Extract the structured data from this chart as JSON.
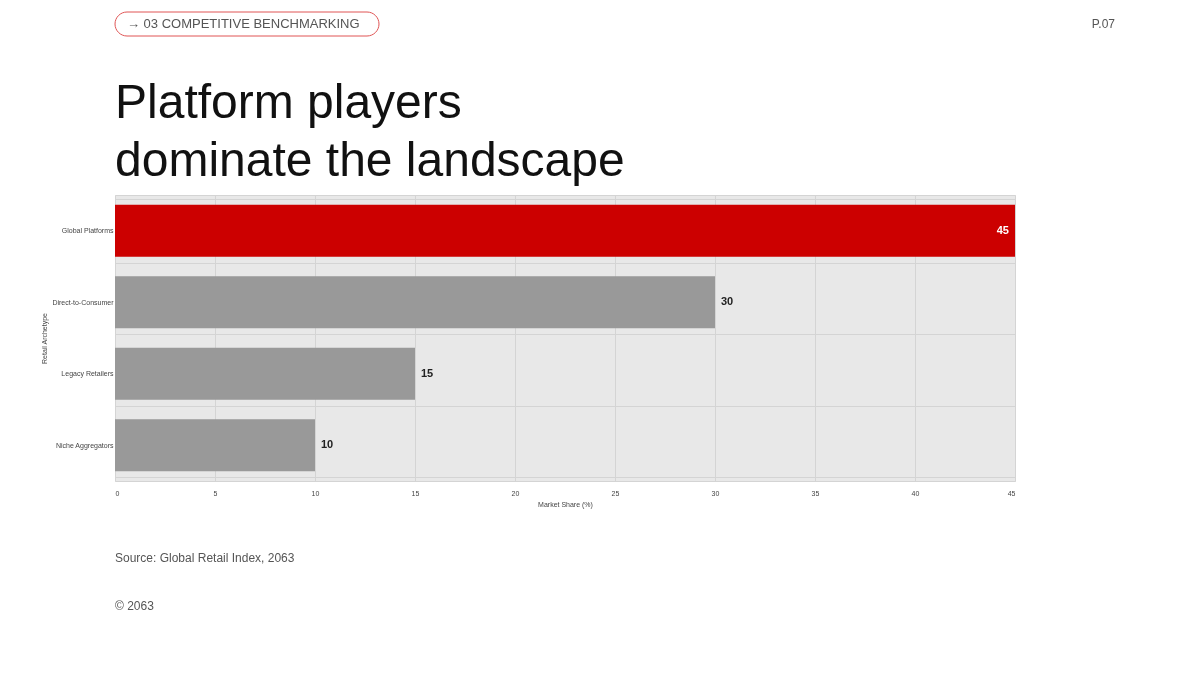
{
  "chart_data": {
    "type": "bar",
    "orientation": "horizontal",
    "title": "Platform players\ndominate the landscape",
    "xlabel": "Market Share (%)",
    "ylabel": "Retail Archetype",
    "categories": [
      "Global Platforms",
      "Direct-to-Consumer",
      "Legacy Retailers",
      "Niche Aggregators"
    ],
    "values": [
      45,
      30,
      15,
      10
    ],
    "colors": [
      "#cc0000",
      "#999999",
      "#999999",
      "#999999"
    ],
    "xlim": [
      0,
      45
    ],
    "xticks": [
      0,
      5,
      10,
      15,
      20,
      25,
      30,
      35,
      40,
      45
    ],
    "grid": true,
    "data_labels": true,
    "annotations": [
      "→ 03 COMPETITIVE BENCHMARKING",
      "P.07",
      "Source: Global Retail Index, 2063",
      "© 2063"
    ]
  }
}
